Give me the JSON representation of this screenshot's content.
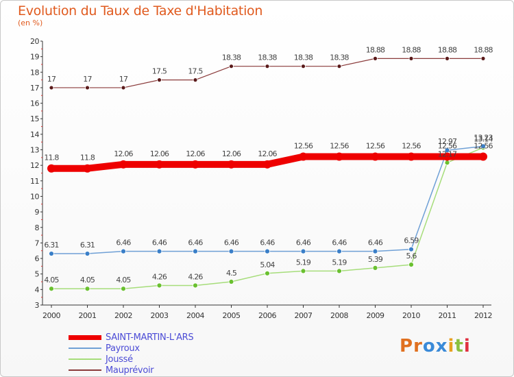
{
  "header": {
    "title": "Evolution du Taux de Taxe d'Habitation",
    "unit": "(en %)"
  },
  "logo": {
    "text": "Proxiti",
    "letter_colors": [
      "#e07020",
      "#e07020",
      "#3a8ad8",
      "#3a8ad8",
      "#e8a020",
      "#8ac040",
      "#e03040"
    ]
  },
  "chart_data": {
    "type": "line",
    "x": [
      "2000",
      "2001",
      "2002",
      "2003",
      "2004",
      "2005",
      "2006",
      "2007",
      "2008",
      "2009",
      "2010",
      "2011",
      "2012"
    ],
    "ylim": [
      3,
      20
    ],
    "yticks": [
      3,
      4,
      5,
      6,
      7,
      8,
      9,
      10,
      11,
      12,
      13,
      14,
      15,
      16,
      17,
      18,
      19,
      20
    ],
    "grid": false,
    "legend_position": "bottom-left",
    "series": [
      {
        "name": "SAINT-MARTIN-L'ARS",
        "color": "#ee0000",
        "values": [
          11.8,
          11.8,
          12.06,
          12.06,
          12.06,
          12.06,
          12.06,
          12.56,
          12.56,
          12.56,
          12.56,
          12.56,
          12.56
        ],
        "labels": [
          "11.8",
          "11.8",
          "12.06",
          "12.06",
          "12.06",
          "12.06",
          "12.06",
          "12.56",
          "12.56",
          "12.56",
          "12.56",
          "12.56",
          "12.56"
        ]
      },
      {
        "name": "Payroux",
        "color": "#6fa0d6",
        "values": [
          6.31,
          6.31,
          6.46,
          6.46,
          6.46,
          6.46,
          6.46,
          6.46,
          6.46,
          6.46,
          6.59,
          12.97,
          13.23
        ],
        "labels": [
          "6.31",
          "6.31",
          "6.46",
          "6.46",
          "6.46",
          "6.46",
          "6.46",
          "6.46",
          "6.46",
          "6.46",
          "6.59",
          "12.97",
          "13.23"
        ]
      },
      {
        "name": "Joussé",
        "color": "#a6dd7a",
        "values": [
          4.05,
          4.05,
          4.05,
          4.26,
          4.26,
          4.5,
          5.04,
          5.19,
          5.19,
          5.39,
          5.6,
          12.17,
          13.14
        ],
        "labels": [
          "4.05",
          "4.05",
          "4.05",
          "4.26",
          "4.26",
          "4.5",
          "5.04",
          "5.19",
          "5.19",
          "5.39",
          "5.6",
          "12.17",
          "13.14"
        ]
      },
      {
        "name": "Mauprévoir",
        "color": "#8a3a3a",
        "values": [
          17,
          17,
          17,
          17.5,
          17.5,
          18.38,
          18.38,
          18.38,
          18.38,
          18.88,
          18.88,
          18.88,
          18.88
        ],
        "labels": [
          "17",
          "17",
          "17",
          "17.5",
          "17.5",
          "18.38",
          "18.38",
          "18.38",
          "18.38",
          "18.88",
          "18.88",
          "18.88",
          "18.88"
        ]
      }
    ]
  }
}
